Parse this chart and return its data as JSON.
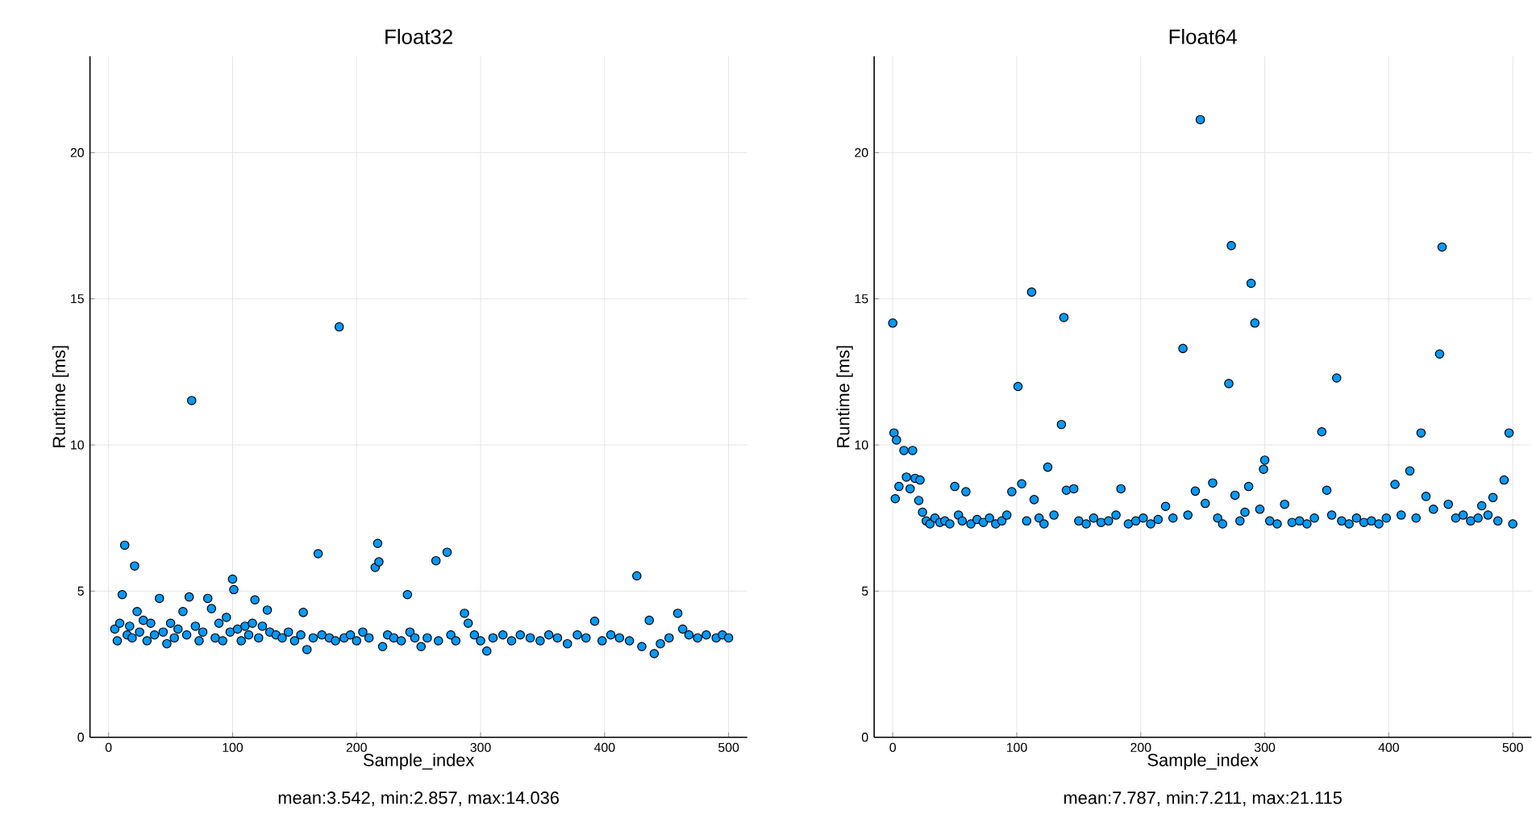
{
  "chart_data": [
    {
      "type": "scatter",
      "title": "Float32",
      "xlabel": "Sample_index",
      "ylabel": "Runtime [ms]",
      "annotations": [
        "mean:3.542,  min:2.857,  max:14.036"
      ],
      "marker": "circle",
      "grid": true,
      "xlim": [
        -15,
        515
      ],
      "ylim": [
        0,
        23.3
      ],
      "xticks": [
        0,
        100,
        200,
        300,
        400,
        500
      ],
      "yticks": [
        0,
        5,
        10,
        15,
        20
      ],
      "x": [
        5,
        7,
        9,
        11,
        13,
        15,
        17,
        19,
        21,
        23,
        25,
        28,
        31,
        34,
        37,
        41,
        44,
        47,
        50,
        53,
        56,
        60,
        63,
        65,
        67,
        70,
        73,
        76,
        80,
        83,
        86,
        89,
        92,
        95,
        98,
        100,
        101,
        104,
        107,
        110,
        113,
        116,
        118,
        121,
        124,
        128,
        130,
        135,
        140,
        145,
        150,
        155,
        157,
        160,
        165,
        169,
        172,
        178,
        183,
        186,
        190,
        195,
        200,
        205,
        210,
        215,
        217,
        218,
        221,
        225,
        230,
        236,
        241,
        243,
        247,
        252,
        257,
        264,
        266,
        273,
        276,
        280,
        287,
        290,
        295,
        300,
        305,
        310,
        318,
        325,
        332,
        340,
        348,
        355,
        362,
        370,
        378,
        385,
        392,
        398,
        405,
        412,
        420,
        426,
        430,
        436,
        440,
        445,
        452,
        459,
        463,
        468,
        475,
        482,
        490,
        495,
        500
      ],
      "series": [
        {
          "color": "#009afa",
          "values": [
            3.7,
            3.3,
            3.9,
            4.88,
            6.57,
            3.5,
            3.8,
            3.4,
            5.86,
            4.3,
            3.6,
            4.0,
            3.3,
            3.9,
            3.5,
            4.75,
            3.6,
            3.2,
            3.9,
            3.4,
            3.7,
            4.3,
            3.5,
            4.8,
            11.52,
            3.8,
            3.3,
            3.6,
            4.75,
            4.4,
            3.4,
            3.9,
            3.3,
            4.1,
            3.6,
            5.41,
            5.05,
            3.7,
            3.3,
            3.8,
            3.5,
            3.9,
            4.7,
            3.4,
            3.8,
            4.35,
            3.6,
            3.5,
            3.4,
            3.6,
            3.3,
            3.5,
            4.27,
            3.0,
            3.4,
            6.28,
            3.5,
            3.4,
            3.3,
            14.04,
            3.4,
            3.5,
            3.3,
            3.6,
            3.4,
            5.81,
            6.63,
            6.0,
            3.1,
            3.5,
            3.4,
            3.3,
            4.88,
            3.6,
            3.4,
            3.1,
            3.4,
            6.04,
            3.3,
            6.33,
            3.5,
            3.3,
            4.24,
            3.9,
            3.5,
            3.3,
            2.95,
            3.4,
            3.5,
            3.3,
            3.5,
            3.4,
            3.3,
            3.5,
            3.4,
            3.2,
            3.5,
            3.4,
            3.97,
            3.3,
            3.5,
            3.4,
            3.3,
            5.52,
            3.1,
            4.0,
            2.86,
            3.2,
            3.4,
            4.24,
            3.7,
            3.5,
            3.4,
            3.5,
            3.4,
            3.5,
            3.4
          ]
        }
      ]
    },
    {
      "type": "scatter",
      "title": "Float64",
      "xlabel": "Sample_index",
      "ylabel": "Runtime [ms]",
      "annotations": [
        "mean:7.787,  min:7.211,  max:21.115"
      ],
      "marker": "circle",
      "grid": true,
      "xlim": [
        -15,
        515
      ],
      "ylim": [
        0,
        23.3
      ],
      "xticks": [
        0,
        100,
        200,
        300,
        400,
        500
      ],
      "yticks": [
        0,
        5,
        10,
        15,
        20
      ],
      "x": [
        0,
        1,
        2,
        3,
        5,
        9,
        11,
        14,
        16,
        18,
        21,
        22,
        24,
        27,
        30,
        34,
        38,
        42,
        46,
        50,
        53,
        56,
        59,
        63,
        68,
        73,
        78,
        83,
        88,
        92,
        96,
        101,
        104,
        108,
        112,
        114,
        118,
        122,
        125,
        130,
        136,
        138,
        140,
        146,
        150,
        156,
        162,
        168,
        174,
        180,
        184,
        190,
        196,
        202,
        208,
        214,
        220,
        226,
        234,
        238,
        244,
        248,
        252,
        258,
        262,
        266,
        271,
        273,
        276,
        280,
        284,
        287,
        289,
        292,
        296,
        299,
        300,
        304,
        310,
        316,
        322,
        328,
        334,
        340,
        346,
        350,
        354,
        358,
        362,
        368,
        374,
        380,
        386,
        392,
        398,
        405,
        410,
        417,
        422,
        426,
        430,
        436,
        441,
        443,
        448,
        454,
        460,
        466,
        472,
        475,
        480,
        484,
        488,
        493,
        497,
        500
      ],
      "series": [
        {
          "color": "#009afa",
          "values": [
            14.17,
            10.41,
            8.16,
            10.17,
            8.58,
            9.81,
            8.9,
            8.5,
            9.81,
            8.86,
            8.1,
            8.8,
            7.7,
            7.4,
            7.3,
            7.5,
            7.35,
            7.4,
            7.3,
            8.58,
            7.6,
            7.4,
            8.4,
            7.3,
            7.45,
            7.35,
            7.5,
            7.3,
            7.4,
            7.6,
            8.4,
            12.0,
            8.67,
            7.4,
            15.23,
            8.13,
            7.5,
            7.3,
            9.24,
            7.6,
            10.7,
            14.36,
            8.45,
            8.5,
            7.4,
            7.3,
            7.5,
            7.35,
            7.4,
            7.6,
            8.5,
            7.3,
            7.4,
            7.5,
            7.3,
            7.45,
            7.9,
            7.5,
            13.3,
            7.6,
            8.42,
            21.13,
            8.0,
            8.7,
            7.5,
            7.3,
            12.1,
            16.82,
            8.28,
            7.4,
            7.7,
            8.58,
            15.53,
            14.17,
            7.8,
            9.17,
            9.48,
            7.4,
            7.3,
            7.97,
            7.35,
            7.4,
            7.3,
            7.5,
            10.45,
            8.45,
            7.6,
            12.29,
            7.4,
            7.3,
            7.5,
            7.35,
            7.4,
            7.3,
            7.5,
            8.65,
            7.6,
            9.11,
            7.5,
            10.41,
            8.24,
            7.8,
            13.11,
            16.77,
            7.97,
            7.5,
            7.6,
            7.4,
            7.5,
            7.92,
            7.6,
            8.2,
            7.4,
            8.8,
            10.41,
            7.3
          ]
        }
      ]
    }
  ]
}
